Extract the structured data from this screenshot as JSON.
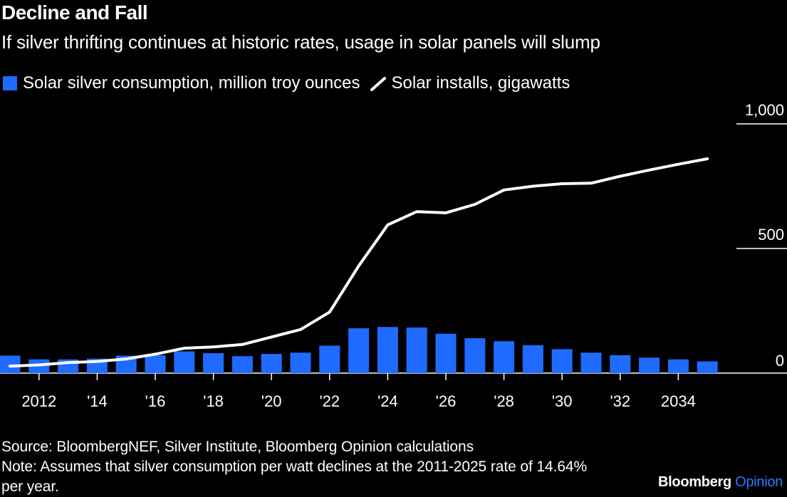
{
  "header": {
    "title": "Decline and Fall",
    "subtitle": "If silver thrifting continues at historic rates, usage in solar panels will slump"
  },
  "legend": {
    "bars_label": "Solar silver consumption, million troy ounces",
    "line_label": "Solar installs, gigawatts"
  },
  "footer": {
    "source": "Source: BloombergNEF, Silver Institute, Bloomberg Opinion calculations",
    "note": "Note: Assumes that silver consumption per watt declines at the 2011-2025 rate of 14.64% per year."
  },
  "brand": {
    "name": "Bloomberg",
    "suffix": "Opinion"
  },
  "colors": {
    "background": "#000000",
    "bars": "#1f6bff",
    "line": "#ffffff",
    "brand_accent": "#2a7bff"
  },
  "chart_data": {
    "type": "bar",
    "title": "Decline and Fall",
    "subtitle": "If silver thrifting continues at historic rates, usage in solar panels will slump",
    "x": [
      2011,
      2012,
      2013,
      2014,
      2015,
      2016,
      2017,
      2018,
      2019,
      2020,
      2021,
      2022,
      2023,
      2024,
      2025,
      2026,
      2027,
      2028,
      2029,
      2030,
      2031,
      2032,
      2033,
      2034,
      2035
    ],
    "xtick_labels": [
      "2012",
      "'14",
      "'16",
      "'18",
      "'20",
      "'22",
      "'24",
      "'26",
      "'28",
      "'30",
      "'32",
      "2034"
    ],
    "xtick_values": [
      2012,
      2014,
      2016,
      2018,
      2020,
      2022,
      2024,
      2026,
      2028,
      2030,
      2032,
      2034
    ],
    "yticks": [
      0,
      500,
      1000
    ],
    "ytick_labels": [
      "0",
      "500",
      "1,000"
    ],
    "ylim": [
      0,
      1000
    ],
    "y_axis_side": "right",
    "grid": false,
    "legend_position": "top-left",
    "series": [
      {
        "name": "Solar silver consumption, million troy ounces",
        "type": "bar",
        "values": [
          70,
          55,
          55,
          58,
          70,
          72,
          87,
          80,
          68,
          77,
          82,
          110,
          180,
          185,
          183,
          158,
          140,
          128,
          112,
          96,
          82,
          72,
          62,
          55,
          47
        ]
      },
      {
        "name": "Solar installs, gigawatts",
        "type": "line",
        "values": [
          28,
          33,
          42,
          47,
          57,
          76,
          100,
          105,
          115,
          145,
          175,
          245,
          430,
          595,
          648,
          643,
          677,
          735,
          750,
          760,
          762,
          790,
          815,
          838,
          860
        ]
      }
    ]
  }
}
